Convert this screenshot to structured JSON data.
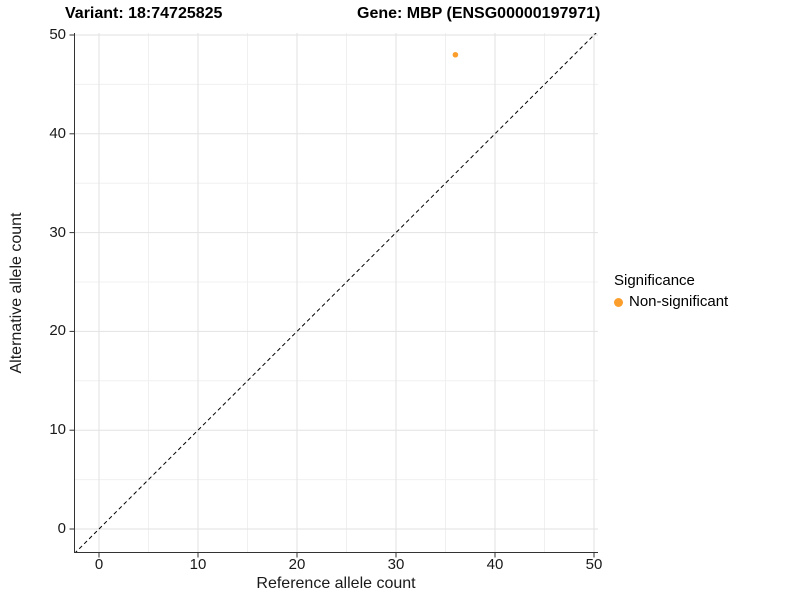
{
  "header": {
    "title_left": "Variant: 18:74725825",
    "title_right": "Gene: MBP (ENSG00000197971)"
  },
  "chart_data": {
    "type": "scatter",
    "title_left": "Variant: 18:74725825",
    "title_right": "Gene: MBP (ENSG00000197971)",
    "xlabel": "Reference allele count",
    "ylabel": "Alternative allele count",
    "xlim": [
      0,
      50
    ],
    "ylim": [
      0,
      50
    ],
    "xticks": [
      0,
      10,
      20,
      30,
      40,
      50
    ],
    "yticks": [
      0,
      10,
      20,
      30,
      40,
      50
    ],
    "grid": "major and minor gridlines, light grey on white panel",
    "identity_line": {
      "style": "dashed",
      "color": "#000000",
      "from": [
        0,
        0
      ],
      "to": [
        50,
        50
      ]
    },
    "series": [
      {
        "name": "Non-significant",
        "color": "#FB9E2B",
        "points": [
          {
            "x": 36,
            "y": 48
          }
        ]
      }
    ],
    "legend": {
      "title": "Significance",
      "position": "right",
      "items": [
        {
          "label": "Non-significant",
          "color": "#FB9E2B"
        }
      ]
    }
  },
  "colors": {
    "point_orange": "#FB9E2B",
    "grid_major": "#E2E2E2",
    "grid_minor": "#F0F0F0",
    "axis_line": "#333333",
    "text": "#1A1A1A",
    "background": "#FFFFFF"
  }
}
